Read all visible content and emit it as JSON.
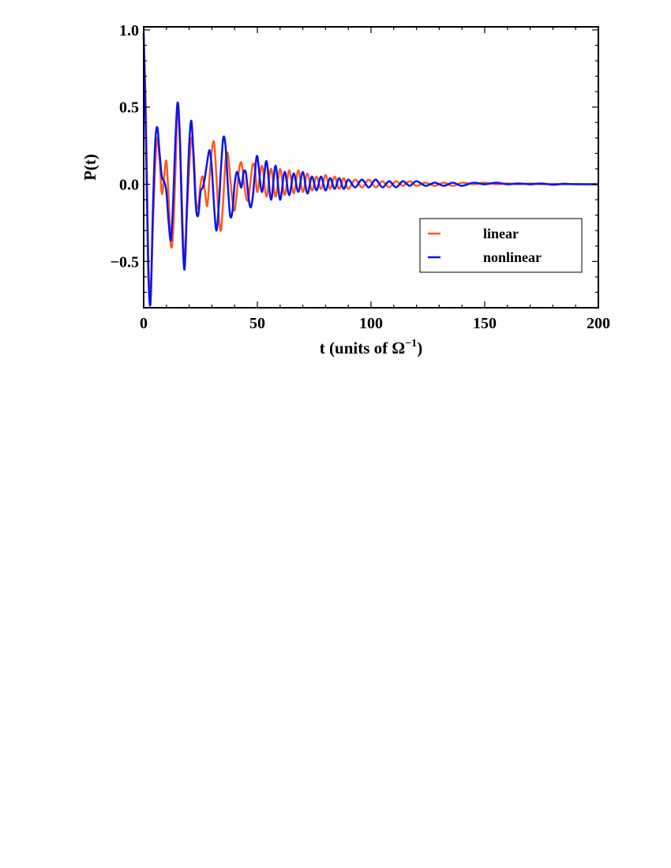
{
  "chart_data": {
    "type": "line",
    "title": "",
    "xlabel": "t (units of Ω",
    "xlabel_sup": "−1",
    "xlabel_close": ")",
    "ylabel": "P(t)",
    "xlim": [
      0,
      200
    ],
    "ylim": [
      -0.8,
      1.02
    ],
    "x_ticks": [
      0,
      50,
      100,
      150,
      200
    ],
    "x_tick_labels": [
      "0",
      "50",
      "100",
      "150",
      "200"
    ],
    "y_ticks": [
      -0.5,
      0.0,
      0.5,
      1.0
    ],
    "y_tick_labels": [
      "−0.5",
      "0.0",
      "0.5",
      "1.0"
    ],
    "grid": false,
    "legend_position": "right-middle",
    "series": [
      {
        "name": "linear",
        "color": "#ff5a1f",
        "x": [
          0,
          1,
          2,
          3,
          4,
          5,
          6,
          7,
          8,
          9,
          10,
          11,
          12,
          13,
          14,
          15,
          16,
          17,
          18,
          19,
          20,
          21,
          22,
          23,
          24,
          25,
          26,
          27,
          28,
          29,
          30,
          31,
          32,
          33,
          34,
          35,
          36,
          37,
          38,
          39,
          40,
          41,
          42,
          43,
          44,
          45,
          46,
          47,
          48,
          49,
          50,
          52,
          54,
          56,
          58,
          60,
          62,
          64,
          66,
          68,
          70,
          72,
          74,
          76,
          78,
          80,
          82,
          84,
          86,
          88,
          90,
          93,
          96,
          99,
          102,
          105,
          108,
          111,
          114,
          117,
          120,
          124,
          128,
          132,
          136,
          140,
          145,
          150,
          155,
          160,
          165,
          170,
          175,
          180,
          185,
          190,
          195,
          200
        ],
        "values": [
          0.95,
          0.45,
          -0.45,
          -0.72,
          -0.3,
          0.1,
          0.3,
          0.16,
          -0.06,
          0.05,
          0.15,
          -0.1,
          -0.4,
          -0.3,
          0.1,
          0.52,
          0.3,
          -0.2,
          -0.5,
          -0.2,
          0.1,
          0.3,
          0.2,
          -0.1,
          -0.15,
          0.0,
          0.05,
          -0.05,
          -0.14,
          0.05,
          0.22,
          0.27,
          0.05,
          -0.2,
          -0.3,
          -0.1,
          0.15,
          0.2,
          0.05,
          -0.1,
          -0.17,
          -0.05,
          0.1,
          0.14,
          0.03,
          -0.08,
          -0.1,
          0.02,
          0.13,
          0.1,
          -0.05,
          0.12,
          -0.08,
          0.1,
          -0.08,
          0.1,
          -0.07,
          0.09,
          -0.06,
          0.09,
          -0.05,
          0.07,
          -0.04,
          0.05,
          -0.03,
          0.06,
          -0.03,
          0.05,
          -0.03,
          0.04,
          -0.03,
          0.03,
          -0.02,
          0.03,
          -0.02,
          0.02,
          -0.02,
          0.02,
          -0.01,
          0.02,
          -0.01,
          0.01,
          -0.01,
          0.01,
          -0.01,
          0.01,
          0.0,
          0.01,
          0.0,
          0.005,
          0.0,
          0.005,
          0.0,
          0.003,
          0.0,
          0.002,
          0.0,
          0.0
        ]
      },
      {
        "name": "nonlinear",
        "color": "#0a14f0",
        "x": [
          0,
          1,
          2,
          3,
          4,
          5,
          6,
          7,
          8,
          9,
          10,
          11,
          12,
          13,
          14,
          15,
          16,
          17,
          18,
          19,
          20,
          21,
          22,
          23,
          24,
          25,
          26,
          27,
          28,
          29,
          30,
          31,
          32,
          33,
          34,
          35,
          36,
          37,
          38,
          39,
          40,
          41,
          42,
          43,
          44,
          45,
          46,
          47,
          48,
          49,
          50,
          52,
          54,
          56,
          58,
          60,
          62,
          64,
          66,
          68,
          70,
          72,
          74,
          76,
          78,
          80,
          82,
          84,
          86,
          88,
          90,
          93,
          96,
          99,
          102,
          105,
          108,
          111,
          114,
          117,
          120,
          124,
          128,
          132,
          136,
          140,
          145,
          150,
          155,
          160,
          165,
          170,
          175,
          180,
          185,
          190,
          195,
          200
        ],
        "values": [
          0.98,
          0.3,
          -0.55,
          -0.77,
          -0.2,
          0.25,
          0.37,
          0.2,
          0.05,
          0.02,
          -0.05,
          -0.25,
          -0.36,
          -0.1,
          0.3,
          0.53,
          0.25,
          -0.3,
          -0.55,
          -0.15,
          0.25,
          0.41,
          0.15,
          -0.15,
          -0.2,
          -0.05,
          -0.02,
          0.05,
          0.15,
          0.22,
          0.1,
          -0.15,
          -0.3,
          -0.15,
          0.1,
          0.3,
          0.25,
          0.0,
          -0.2,
          -0.18,
          0.0,
          0.08,
          0.03,
          -0.02,
          0.08,
          0.07,
          -0.07,
          -0.15,
          -0.08,
          0.08,
          0.18,
          -0.05,
          0.15,
          -0.1,
          0.12,
          -0.1,
          0.08,
          -0.07,
          0.07,
          -0.05,
          0.08,
          -0.06,
          0.05,
          -0.04,
          0.05,
          -0.04,
          0.04,
          -0.03,
          0.04,
          -0.03,
          0.03,
          -0.02,
          0.03,
          -0.02,
          0.03,
          -0.02,
          0.02,
          -0.02,
          0.02,
          -0.01,
          0.02,
          -0.01,
          0.01,
          -0.01,
          0.01,
          -0.01,
          0.01,
          0.0,
          0.01,
          0.0,
          0.005,
          0.0,
          0.005,
          -0.003,
          0.003,
          0.0,
          0.0,
          0.0
        ]
      }
    ]
  }
}
